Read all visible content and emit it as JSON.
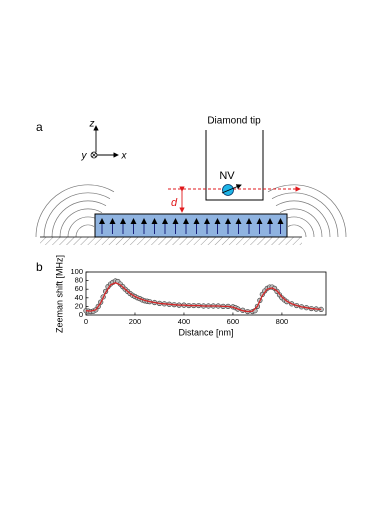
{
  "panel_a": {
    "label": "a",
    "tip_label": "Diamond tip",
    "nv_label": "NV",
    "axis_z": "z",
    "axis_y": "y",
    "axis_x": "x",
    "d_label": "d"
  },
  "chart_data": {
    "type": "line",
    "panel_label": "b",
    "x_label": "Distance [nm]",
    "y_label": "Zeeman shift [MHz]",
    "xlim": [
      0,
      980
    ],
    "ylim": [
      0,
      100
    ],
    "xticks": [
      0,
      200,
      400,
      600,
      800
    ],
    "yticks": [
      0,
      20,
      40,
      60,
      80,
      100
    ],
    "series": [
      {
        "type": "scatter",
        "color": "#bdbdbd",
        "x": [
          0,
          10,
          20,
          30,
          40,
          50,
          60,
          70,
          80,
          90,
          100,
          110,
          120,
          130,
          140,
          150,
          160,
          170,
          180,
          190,
          200,
          210,
          220,
          230,
          240,
          250,
          260,
          280,
          300,
          320,
          340,
          360,
          380,
          400,
          420,
          440,
          460,
          480,
          500,
          520,
          540,
          560,
          580,
          600,
          610,
          620,
          640,
          660,
          680,
          690,
          700,
          710,
          720,
          730,
          740,
          750,
          760,
          770,
          780,
          790,
          800,
          810,
          820,
          840,
          860,
          880,
          900,
          920,
          940,
          960
        ],
        "values": [
          10,
          9,
          8,
          9,
          12,
          20,
          30,
          42,
          55,
          66,
          72,
          76,
          79,
          78,
          72,
          66,
          60,
          55,
          50,
          46,
          43,
          40,
          38,
          35,
          33,
          32,
          31,
          29,
          27,
          26,
          25,
          24,
          23,
          23,
          22,
          22,
          22,
          21,
          21,
          21,
          21,
          20,
          20,
          19,
          17,
          14,
          11,
          8,
          8,
          10,
          20,
          34,
          48,
          56,
          62,
          65,
          65,
          62,
          55,
          47,
          40,
          35,
          31,
          26,
          22,
          19,
          17,
          15,
          14,
          13
        ]
      },
      {
        "type": "line",
        "color": "#d62728",
        "x": [
          0,
          20,
          40,
          60,
          80,
          100,
          120,
          140,
          160,
          180,
          200,
          220,
          240,
          260,
          280,
          300,
          320,
          340,
          360,
          380,
          400,
          420,
          440,
          460,
          480,
          500,
          520,
          540,
          560,
          580,
          600,
          620,
          640,
          660,
          680,
          700,
          720,
          740,
          760,
          780,
          800,
          820,
          840,
          860,
          880,
          900,
          920,
          940,
          960
        ],
        "values": [
          10,
          9,
          12,
          28,
          52,
          70,
          75,
          70,
          60,
          50,
          43,
          38,
          34,
          31,
          29,
          27,
          26,
          25,
          24,
          23,
          23,
          22,
          22,
          22,
          21,
          21,
          21,
          21,
          20,
          20,
          18,
          14,
          10,
          8,
          9,
          20,
          45,
          60,
          63,
          56,
          42,
          32,
          26,
          22,
          19,
          17,
          15,
          14,
          13
        ]
      }
    ]
  }
}
